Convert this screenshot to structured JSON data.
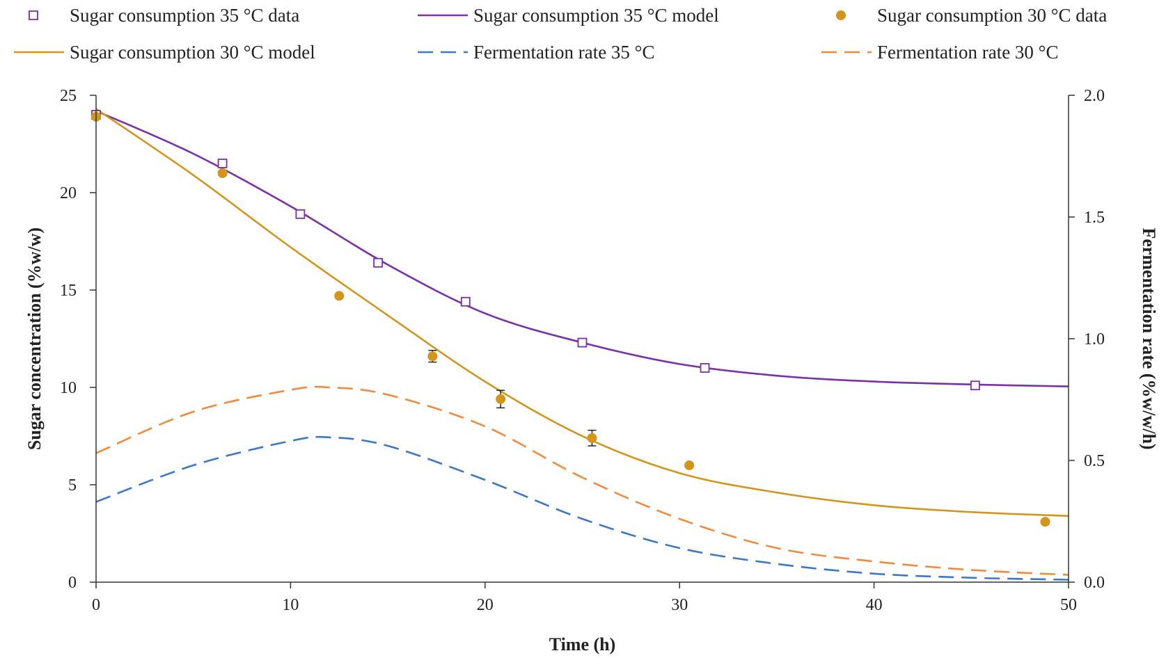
{
  "chart_data": {
    "type": "line",
    "xlabel": "Time (h)",
    "ylabel": "Sugar concentration (%w/w)",
    "y2label": "Fermentation rate (%w/w/h)",
    "xlim": [
      0,
      50
    ],
    "ylim": [
      0,
      25
    ],
    "y2lim": [
      0,
      2.0
    ],
    "x_ticks": [
      "0",
      "10",
      "20",
      "30",
      "40",
      "50"
    ],
    "y_ticks": [
      "0",
      "5",
      "10",
      "15",
      "20",
      "25"
    ],
    "y2_ticks": [
      "0.0",
      "0.5",
      "1.0",
      "1.5",
      "2.0"
    ],
    "grid": false,
    "legend_position": "top",
    "series": [
      {
        "name": "Sugar consumption 35 °C data",
        "kind": "scatter",
        "marker": "open-square",
        "axis": "left",
        "color": "#7B2FA8",
        "x": [
          0,
          6.5,
          10.5,
          14.5,
          19,
          25,
          31.3,
          45.2
        ],
        "y": [
          24.0,
          21.5,
          18.9,
          16.4,
          14.4,
          12.3,
          11.0,
          10.1
        ]
      },
      {
        "name": "Sugar consumption 35 °C model",
        "kind": "line",
        "axis": "left",
        "color": "#7B2FA8",
        "x": [
          0,
          5,
          10,
          15,
          20,
          25,
          30,
          35,
          40,
          45,
          50
        ],
        "y": [
          24.2,
          22.0,
          19.3,
          16.3,
          13.8,
          12.3,
          11.2,
          10.6,
          10.3,
          10.15,
          10.05
        ]
      },
      {
        "name": "Sugar consumption 30 °C data",
        "kind": "scatter",
        "marker": "filled-circle",
        "axis": "left",
        "color": "#D4961A",
        "x": [
          0,
          6.5,
          12.5,
          17.3,
          20.8,
          25.5,
          30.5,
          48.8
        ],
        "y": [
          23.9,
          21.0,
          14.7,
          11.6,
          9.4,
          7.4,
          6.0,
          3.1
        ],
        "error": [
          0,
          0,
          0,
          0.3,
          0.45,
          0.4,
          0,
          0
        ]
      },
      {
        "name": "Sugar consumption 30 °C model",
        "kind": "line",
        "axis": "left",
        "color": "#D4961A",
        "x": [
          0,
          5,
          10,
          15,
          20,
          25,
          30,
          35,
          40,
          45,
          50
        ],
        "y": [
          24.3,
          20.9,
          17.2,
          13.7,
          10.3,
          7.5,
          5.6,
          4.6,
          3.95,
          3.6,
          3.4
        ]
      },
      {
        "name": "Fermentation rate 35 °C",
        "kind": "line",
        "dash": "dashed",
        "axis": "right",
        "color": "#3A78C9",
        "x": [
          0,
          5,
          10,
          12,
          15,
          20,
          25,
          30,
          35,
          40,
          45,
          50
        ],
        "y": [
          0.33,
          0.48,
          0.58,
          0.595,
          0.56,
          0.42,
          0.26,
          0.14,
          0.075,
          0.035,
          0.018,
          0.01
        ]
      },
      {
        "name": "Fermentation rate 30 °C",
        "kind": "line",
        "dash": "dashed",
        "axis": "right",
        "color": "#F28A3C",
        "x": [
          0,
          5,
          10,
          12,
          15,
          20,
          25,
          30,
          35,
          40,
          45,
          50
        ],
        "y": [
          0.53,
          0.7,
          0.79,
          0.8,
          0.77,
          0.64,
          0.43,
          0.26,
          0.14,
          0.085,
          0.05,
          0.03
        ]
      }
    ]
  }
}
